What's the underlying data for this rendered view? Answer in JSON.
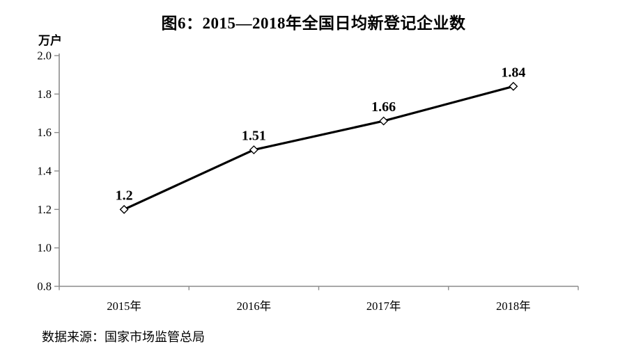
{
  "figure": {
    "title": "图6：2015—2018年全国日均新登记企业数",
    "unit_label": "万户",
    "source": "数据来源：国家市场监管总局"
  },
  "chart_data": {
    "type": "line",
    "title": "图6：2015—2018年全国日均新登记企业数",
    "categories": [
      "2015年",
      "2016年",
      "2017年",
      "2018年"
    ],
    "values": [
      1.2,
      1.51,
      1.66,
      1.84
    ],
    "data_labels": [
      "1.2",
      "1.51",
      "1.66",
      "1.84"
    ],
    "xlabel": "",
    "ylabel": "万户",
    "ylim": [
      0.8,
      2.0
    ],
    "yticks": [
      "2.0",
      "1.8",
      "1.6",
      "1.4",
      "1.2",
      "1.0",
      "0.8"
    ],
    "grid": false,
    "legend": "none",
    "line_color": "#000000",
    "marker": "open-diamond",
    "marker_fill": "#ffffff",
    "axis_color": "#8c8c8c",
    "text_color": "#000000"
  }
}
